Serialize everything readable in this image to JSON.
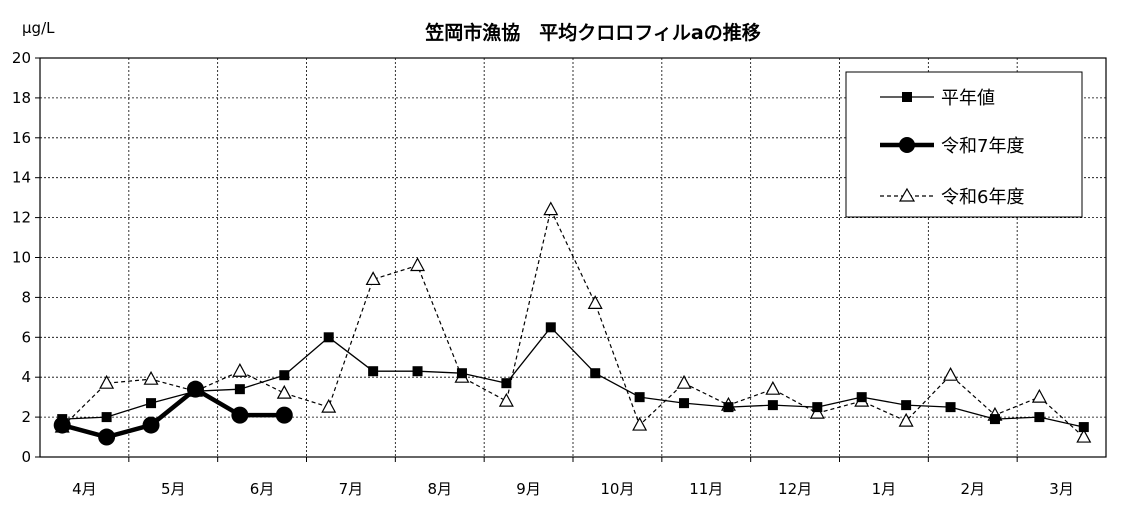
{
  "chart_data": {
    "type": "line",
    "title": "笠岡市漁協　平均クロロフィルaの推移",
    "unit_label": "μg/L",
    "ylim": [
      0,
      20
    ],
    "y_ticks": [
      "0",
      "2",
      "4",
      "6",
      "8",
      "10",
      "12",
      "14",
      "16",
      "18",
      "20"
    ],
    "month_labels": [
      "4月",
      "5月",
      "6月",
      "7月",
      "8月",
      "9月",
      "10月",
      "11月",
      "12月",
      "1月",
      "2月",
      "3月"
    ],
    "grid": true,
    "legend_position": "top-right",
    "series": [
      {
        "name": "平年値",
        "marker": "square",
        "line": "solid",
        "values": [
          1.9,
          2.0,
          2.7,
          3.3,
          3.4,
          4.1,
          6.0,
          4.3,
          4.3,
          4.2,
          3.7,
          6.5,
          4.2,
          3.0,
          2.7,
          2.5,
          2.6,
          2.5,
          3.0,
          2.6,
          2.5,
          1.9,
          2.0,
          1.5
        ]
      },
      {
        "name": "令和7年度",
        "marker": "circle",
        "line": "bold",
        "values": [
          1.6,
          1.0,
          1.6,
          3.4,
          2.1,
          2.1,
          null,
          null,
          null,
          null,
          null,
          null,
          null,
          null,
          null,
          null,
          null,
          null,
          null,
          null,
          null,
          null,
          null,
          null
        ]
      },
      {
        "name": "令和6年度",
        "marker": "triangle",
        "line": "dashed",
        "values": [
          1.5,
          3.7,
          3.9,
          3.3,
          4.3,
          3.2,
          2.5,
          8.9,
          9.6,
          4.0,
          2.8,
          12.4,
          7.7,
          1.6,
          3.7,
          2.6,
          3.4,
          2.2,
          2.8,
          1.8,
          4.1,
          2.1,
          3.0,
          1.0
        ]
      }
    ]
  }
}
